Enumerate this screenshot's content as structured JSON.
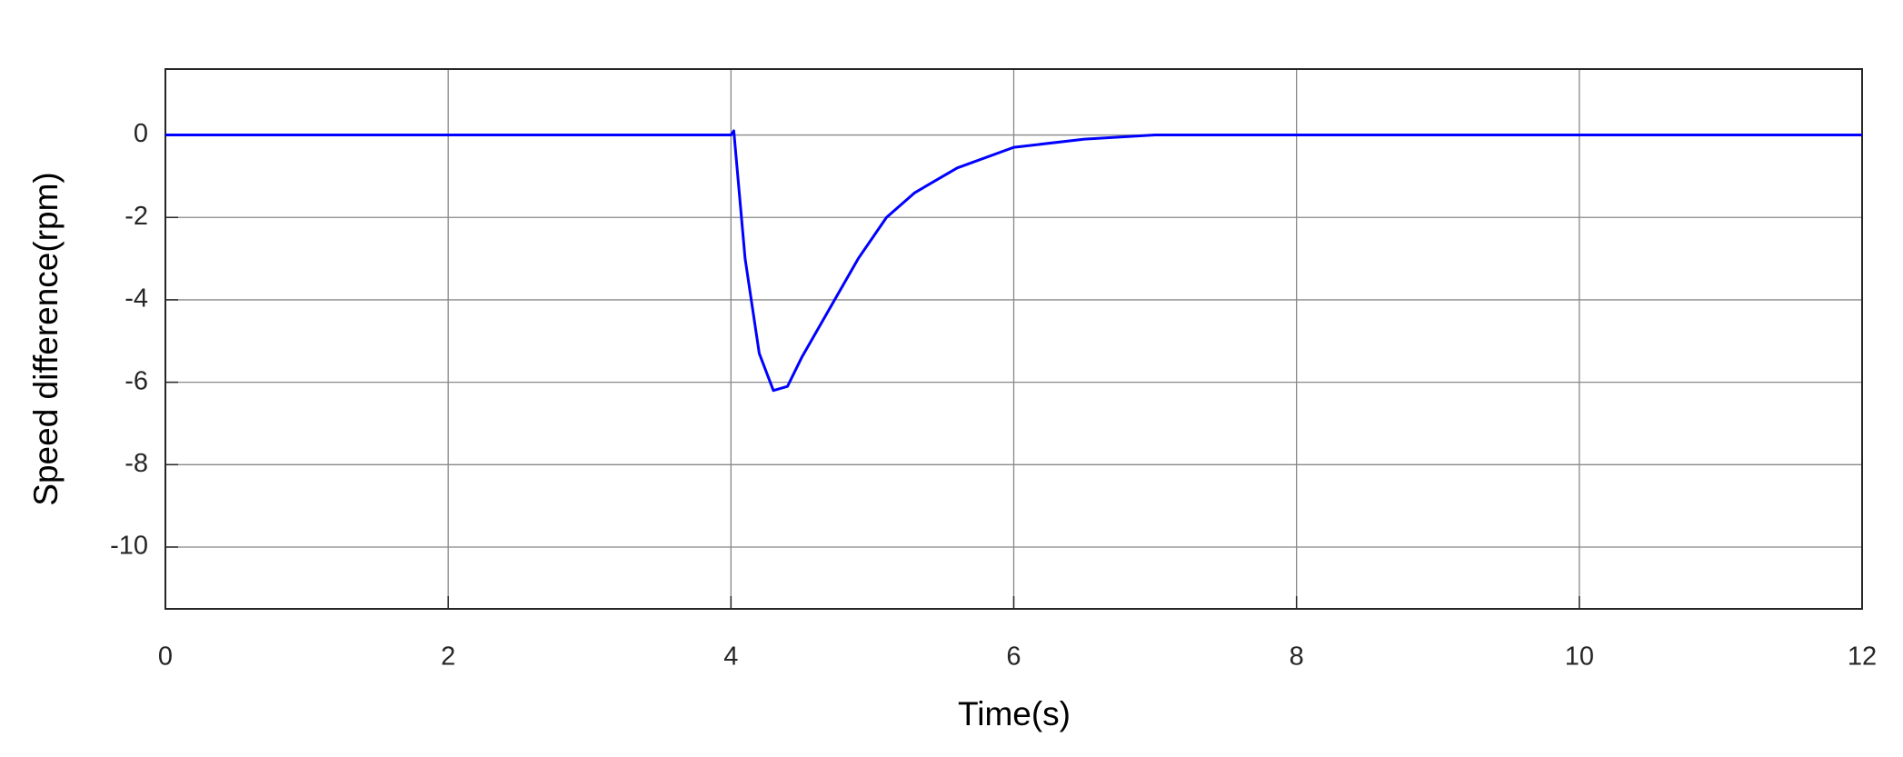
{
  "chart_data": {
    "type": "line",
    "x_label": "Time(s)",
    "y_label": "Speed difference(rpm)",
    "xlim": [
      0,
      12
    ],
    "xticks": [
      0,
      2,
      4,
      6,
      8,
      10,
      12
    ],
    "ylim": [
      -11.5,
      1.6
    ],
    "yticks": [
      -10,
      -8,
      -6,
      -4,
      -2,
      0
    ],
    "grid": true,
    "series": [
      {
        "color": "#0000ff",
        "x": [
          0,
          4,
          4.02,
          4.1,
          4.2,
          4.3,
          4.4,
          4.5,
          4.7,
          4.9,
          5.1,
          5.3,
          5.6,
          6,
          6.5,
          7,
          12
        ],
        "values": [
          0,
          0,
          0.1,
          -3,
          -5.3,
          -6.2,
          -6.1,
          -5.4,
          -4.2,
          -3,
          -2,
          -1.4,
          -0.8,
          -0.3,
          -0.1,
          0,
          0
        ]
      }
    ]
  }
}
